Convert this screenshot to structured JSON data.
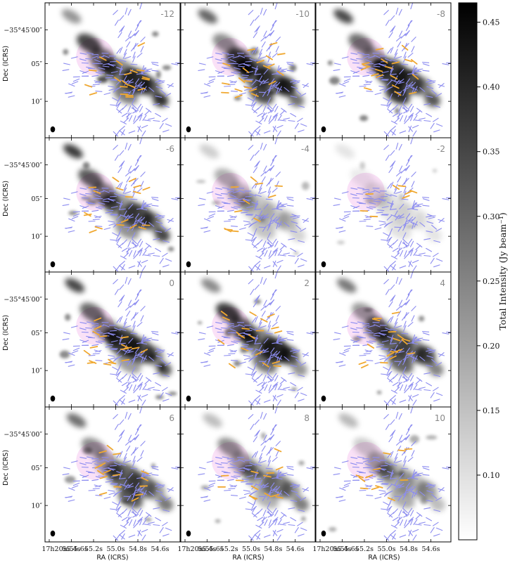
{
  "chart_data": {
    "type": "heatmap",
    "description_panels": "channel maps",
    "velocity_labels": [
      "-12",
      "-10",
      "-8",
      "-6",
      "-4",
      "-2",
      "0",
      "2",
      "4",
      "6",
      "8",
      "10"
    ],
    "rows": 4,
    "cols": 3,
    "xlabel": "RA (ICRS)",
    "ylabel": "Dec (ICRS)",
    "xtick_labels": [
      "17h20m55.6s",
      "55.4s",
      "55.2s",
      "55.0s",
      "54.8s",
      "54.6s"
    ],
    "ytick_labels": [
      "−35°45′00″",
      "05″",
      "10″"
    ],
    "colorbar": {
      "label": "Total Intensity (Jy beam⁻¹)",
      "ticks": [
        "0.10",
        "0.15",
        "0.20",
        "0.25",
        "0.30",
        "0.35",
        "0.40",
        "0.45"
      ],
      "range": [
        0.05,
        0.465
      ],
      "colormap": "Greys"
    },
    "panel_intensity": [
      0.9,
      1.0,
      0.95,
      0.85,
      0.35,
      0.15,
      0.85,
      0.9,
      0.8,
      0.7,
      0.55,
      0.45
    ],
    "colors": {
      "field_segments": "#8c8cf0",
      "channel_segments": "#f0a830",
      "core_region": "#f5c8f0",
      "beam": "#000000"
    }
  }
}
